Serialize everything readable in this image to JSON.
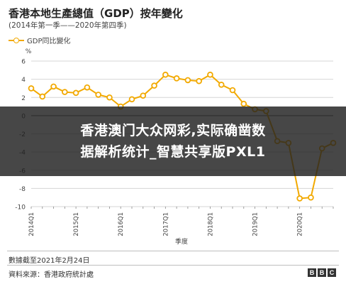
{
  "header": {
    "title": "香港本地生產總值（GDP）按年變化",
    "subtitle": "(2014年第一季——2020年第四季)"
  },
  "legend": {
    "label": "GDP同比變化",
    "color": "#f2a900"
  },
  "overlay": {
    "line1": "香港澳门大众网彩,实际确凿数",
    "line2": "据解析统计_智慧共享版PXL1"
  },
  "footer": {
    "date_note": "數據截至2021年2月24日",
    "source": "資料來源：香港政府統計處",
    "logo": [
      "B",
      "B",
      "C"
    ]
  },
  "chart_data": {
    "type": "line",
    "ylabel": "%",
    "xlabel": "季度",
    "ylim": [
      -10,
      6
    ],
    "yticks": [
      6,
      4,
      2,
      0,
      -2,
      -4,
      -6,
      -8,
      -10
    ],
    "grid": true,
    "tick_labels": [
      "2014Q1",
      "2015Q1",
      "2016Q1",
      "2017Q1",
      "2018Q1",
      "2019Q1",
      "2020Q1"
    ],
    "x": [
      "2014Q1",
      "2014Q2",
      "2014Q3",
      "2014Q4",
      "2015Q1",
      "2015Q2",
      "2015Q3",
      "2015Q4",
      "2016Q1",
      "2016Q2",
      "2016Q3",
      "2016Q4",
      "2017Q1",
      "2017Q2",
      "2017Q3",
      "2017Q4",
      "2018Q1",
      "2018Q2",
      "2018Q3",
      "2018Q4",
      "2019Q1",
      "2019Q2",
      "2019Q3",
      "2019Q4",
      "2020Q1",
      "2020Q2",
      "2020Q3",
      "2020Q4"
    ],
    "series": [
      {
        "name": "GDP同比變化",
        "color": "#f2a900",
        "values": [
          3.0,
          2.1,
          3.2,
          2.6,
          2.5,
          3.1,
          2.3,
          2.0,
          1.0,
          1.8,
          2.2,
          3.3,
          4.5,
          4.1,
          3.9,
          3.8,
          4.5,
          3.4,
          2.8,
          1.3,
          0.7,
          0.5,
          -2.8,
          -3.0,
          -9.1,
          -9.0,
          -3.6,
          -3.0
        ]
      }
    ]
  }
}
